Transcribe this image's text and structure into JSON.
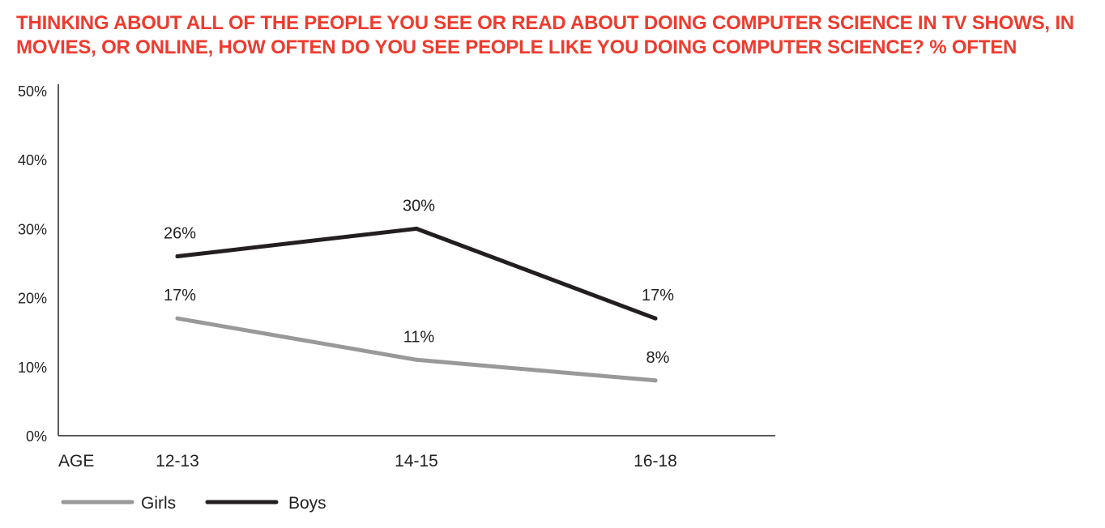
{
  "title": "THINKING ABOUT ALL OF THE PEOPLE YOU SEE OR READ ABOUT DOING COMPUTER SCIENCE IN TV SHOWS, IN MOVIES, OR ONLINE, HOW OFTEN DO YOU SEE PEOPLE LIKE YOU DOING COMPUTER SCIENCE?  % OFTEN",
  "colors": {
    "title": "#ee3b2e",
    "girls": "#999999",
    "boys": "#231f20",
    "axis": "#222222"
  },
  "chart_data": {
    "type": "line",
    "title": "THINKING ABOUT ALL OF THE PEOPLE YOU SEE OR READ ABOUT DOING COMPUTER SCIENCE IN TV SHOWS, IN MOVIES, OR ONLINE, HOW OFTEN DO YOU SEE PEOPLE LIKE YOU DOING COMPUTER SCIENCE?  % OFTEN",
    "xlabel": "AGE",
    "ylabel": "",
    "categories": [
      "12-13",
      "14-15",
      "16-18"
    ],
    "ylim": [
      0,
      50
    ],
    "yticks": [
      "0%",
      "10%",
      "20%",
      "30%",
      "40%",
      "50%"
    ],
    "ytick_values": [
      0,
      10,
      20,
      30,
      40,
      50
    ],
    "grid": false,
    "legend": "bottom-left",
    "series": [
      {
        "name": "Girls",
        "values": [
          17,
          11,
          8
        ],
        "labels": [
          "17%",
          "11%",
          "8%"
        ],
        "color": "#999999"
      },
      {
        "name": "Boys",
        "values": [
          26,
          30,
          17
        ],
        "labels": [
          "26%",
          "30%",
          "17%"
        ],
        "color": "#231f20"
      }
    ]
  }
}
